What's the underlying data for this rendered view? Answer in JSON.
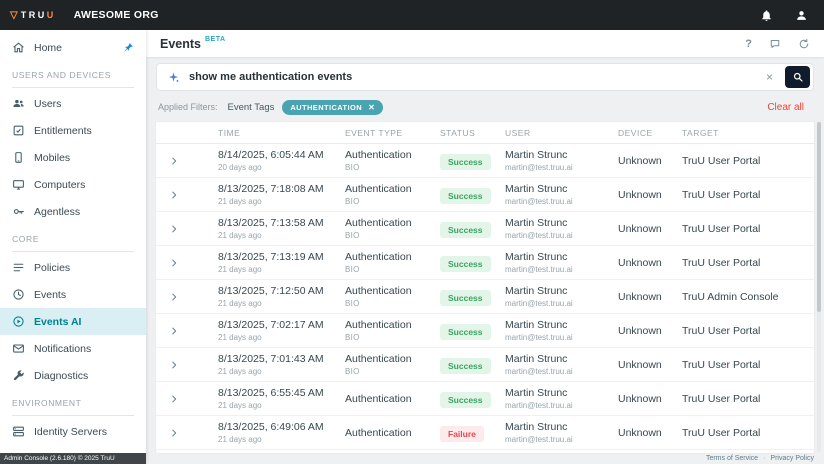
{
  "topbar": {
    "logo_mark": "▽",
    "logo_prefix": "TRU",
    "logo_suffix": "U",
    "org_name": "AWESOME ORG",
    "icons": [
      "bell",
      "person"
    ]
  },
  "sidebar": {
    "sections": [
      {
        "header": "",
        "items": [
          {
            "label": "Home",
            "icon": "home",
            "pinned": true,
            "active": false
          }
        ]
      },
      {
        "header": "USERS AND DEVICES",
        "items": [
          {
            "label": "Users",
            "icon": "users",
            "active": false
          },
          {
            "label": "Entitlements",
            "icon": "entitlements",
            "active": false
          },
          {
            "label": "Mobiles",
            "icon": "mobile",
            "active": false
          },
          {
            "label": "Computers",
            "icon": "computer",
            "active": false
          },
          {
            "label": "Agentless",
            "icon": "key",
            "active": false
          }
        ]
      },
      {
        "header": "CORE",
        "items": [
          {
            "label": "Policies",
            "icon": "policies",
            "active": false
          },
          {
            "label": "Events",
            "icon": "events",
            "active": false
          },
          {
            "label": "Events AI",
            "icon": "events-ai",
            "active": true
          },
          {
            "label": "Notifications",
            "icon": "notifications",
            "active": false
          },
          {
            "label": "Diagnostics",
            "icon": "diagnostics",
            "active": false
          }
        ]
      },
      {
        "header": "ENVIRONMENT",
        "items": [
          {
            "label": "Identity Servers",
            "icon": "identity-servers",
            "active": false
          }
        ]
      }
    ],
    "footer": "Admin Console (2.6.180) © 2025 TruU"
  },
  "header": {
    "title": "Events",
    "badge": "BETA",
    "help_glyph": "?",
    "icons": [
      "help",
      "chat",
      "refresh"
    ]
  },
  "search": {
    "value": "show me authentication events",
    "clear_glyph": "×"
  },
  "filters": {
    "label": "Applied Filters:",
    "field": "Event Tags",
    "chips": [
      "AUTHENTICATION"
    ],
    "chip_remove_glyph": "✕",
    "clear_all": "Clear all"
  },
  "table": {
    "columns": [
      "TIME",
      "EVENT TYPE",
      "STATUS",
      "USER",
      "DEVICE",
      "TARGET"
    ],
    "rows": [
      {
        "time": "8/14/2025, 6:05:44 AM",
        "ago": "20 days ago",
        "type": "Authentication",
        "sub": "BIO",
        "status": "Success",
        "user": "Martin Strunc",
        "email": "martin@test.truu.ai",
        "device": "Unknown",
        "target": "TruU User Portal"
      },
      {
        "time": "8/13/2025, 7:18:08 AM",
        "ago": "21 days ago",
        "type": "Authentication",
        "sub": "BIO",
        "status": "Success",
        "user": "Martin Strunc",
        "email": "martin@test.truu.ai",
        "device": "Unknown",
        "target": "TruU User Portal"
      },
      {
        "time": "8/13/2025, 7:13:58 AM",
        "ago": "21 days ago",
        "type": "Authentication",
        "sub": "BIO",
        "status": "Success",
        "user": "Martin Strunc",
        "email": "martin@test.truu.ai",
        "device": "Unknown",
        "target": "TruU User Portal"
      },
      {
        "time": "8/13/2025, 7:13:19 AM",
        "ago": "21 days ago",
        "type": "Authentication",
        "sub": "BIO",
        "status": "Success",
        "user": "Martin Strunc",
        "email": "martin@test.truu.ai",
        "device": "Unknown",
        "target": "TruU User Portal"
      },
      {
        "time": "8/13/2025, 7:12:50 AM",
        "ago": "21 days ago",
        "type": "Authentication",
        "sub": "BIO",
        "status": "Success",
        "user": "Martin Strunc",
        "email": "martin@test.truu.ai",
        "device": "Unknown",
        "target": "TruU Admin Console"
      },
      {
        "time": "8/13/2025, 7:02:17 AM",
        "ago": "21 days ago",
        "type": "Authentication",
        "sub": "BIO",
        "status": "Success",
        "user": "Martin Strunc",
        "email": "martin@test.truu.ai",
        "device": "Unknown",
        "target": "TruU User Portal"
      },
      {
        "time": "8/13/2025, 7:01:43 AM",
        "ago": "21 days ago",
        "type": "Authentication",
        "sub": "BIO",
        "status": "Success",
        "user": "Martin Strunc",
        "email": "martin@test.truu.ai",
        "device": "Unknown",
        "target": "TruU User Portal"
      },
      {
        "time": "8/13/2025, 6:55:45 AM",
        "ago": "21 days ago",
        "type": "Authentication",
        "sub": "",
        "status": "Success",
        "user": "Martin Strunc",
        "email": "martin@test.truu.ai",
        "device": "Unknown",
        "target": "TruU User Portal"
      },
      {
        "time": "8/13/2025, 6:49:06 AM",
        "ago": "21 days ago",
        "type": "Authentication",
        "sub": "",
        "status": "Failure",
        "user": "Martin Strunc",
        "email": "martin@test.truu.ai",
        "device": "Unknown",
        "target": "TruU User Portal"
      }
    ]
  },
  "footer": {
    "terms": "Terms of Service",
    "separator": "·",
    "privacy": "Privacy Policy"
  },
  "colors": {
    "accent_teal": "#00838f",
    "chip_bg": "#4aa3b0",
    "success": "#3aa35f",
    "failure": "#e5484d",
    "clear_all": "#f44336",
    "topbar_bg": "#1f2326",
    "active_item_bg": "#d9eff3"
  }
}
